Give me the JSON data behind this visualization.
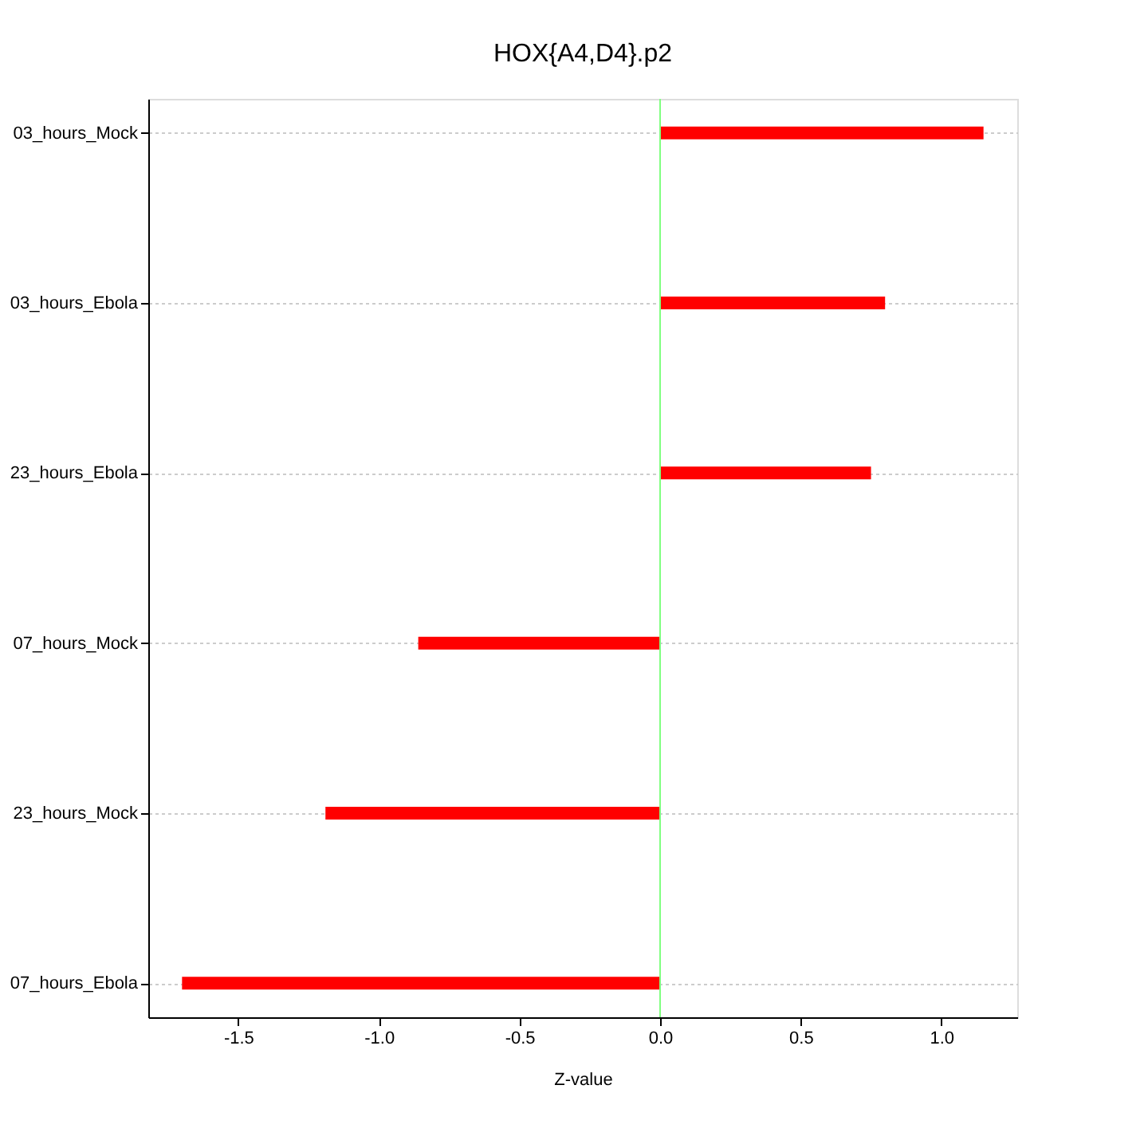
{
  "chart_data": {
    "type": "bar",
    "orientation": "horizontal",
    "title": "HOX{A4,D4}.p2",
    "xlabel": "Z-value",
    "categories": [
      "03_hours_Mock",
      "03_hours_Ebola",
      "23_hours_Ebola",
      "07_hours_Mock",
      "23_hours_Mock",
      "07_hours_Ebola"
    ],
    "values": [
      1.15,
      0.8,
      0.75,
      -0.86,
      -1.19,
      -1.7
    ],
    "color": "#ff0000",
    "xlim": [
      -1.82,
      1.27
    ],
    "xticks": [
      -1.5,
      {
        "value": -1.0,
        "label": "-1.0"
      },
      -0.5,
      {
        "value": 0.0,
        "label": "0.0"
      },
      0.5,
      {
        "value": 1.0,
        "label": "1.0"
      }
    ],
    "grid": "y",
    "ref_lines": [
      {
        "axis": "x",
        "value": 0,
        "color": "#80ff80"
      }
    ]
  }
}
